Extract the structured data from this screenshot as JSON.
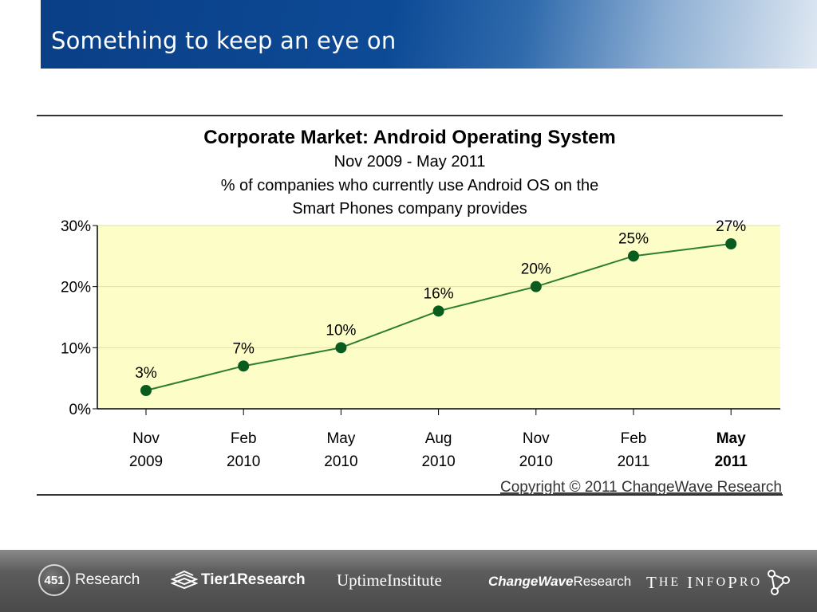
{
  "slide": {
    "title": "Something to keep an eye on"
  },
  "colors": {
    "header_blue": "#0d4a96",
    "plot_background": "#fdfdc8",
    "line": "#2e7d32",
    "marker": "#0a5c1e"
  },
  "chart_data": {
    "type": "line",
    "title": "Corporate Market: Android Operating System",
    "subtitle_lines": [
      "Nov 2009 - May 2011",
      "% of companies who currently use Android OS on the",
      "Smart Phones company provides"
    ],
    "categories": [
      [
        "Nov",
        "2009"
      ],
      [
        "Feb",
        "2010"
      ],
      [
        "May",
        "2010"
      ],
      [
        "Aug",
        "2010"
      ],
      [
        "Nov",
        "2010"
      ],
      [
        "Feb",
        "2011"
      ],
      [
        "May",
        "2011"
      ]
    ],
    "highlight_last_category": true,
    "series": [
      {
        "values": [
          3,
          7,
          10,
          16,
          20,
          25,
          27
        ]
      }
    ],
    "data_labels": [
      "3%",
      "7%",
      "10%",
      "16%",
      "20%",
      "25%",
      "27%"
    ],
    "yticks": [
      "0%",
      "10%",
      "20%",
      "30%"
    ],
    "ylim": [
      0,
      30
    ],
    "grid": true,
    "legend": "none",
    "copyright": "Copyright © 2011 ChangeWave Research"
  },
  "footer": {
    "logo_451_badge": "451",
    "logo_451_text": "Research",
    "tier_a": "Tier",
    "tier_b": "1Research",
    "uptime": "UptimeInstitute",
    "cw_a": "ChangeWave",
    "cw_b": "Research",
    "tip_the": "T",
    "tip_he": "HE",
    "tip_i": "I",
    "tip_nfo": "NFO",
    "tip_p": "P",
    "tip_ro": "RO"
  }
}
